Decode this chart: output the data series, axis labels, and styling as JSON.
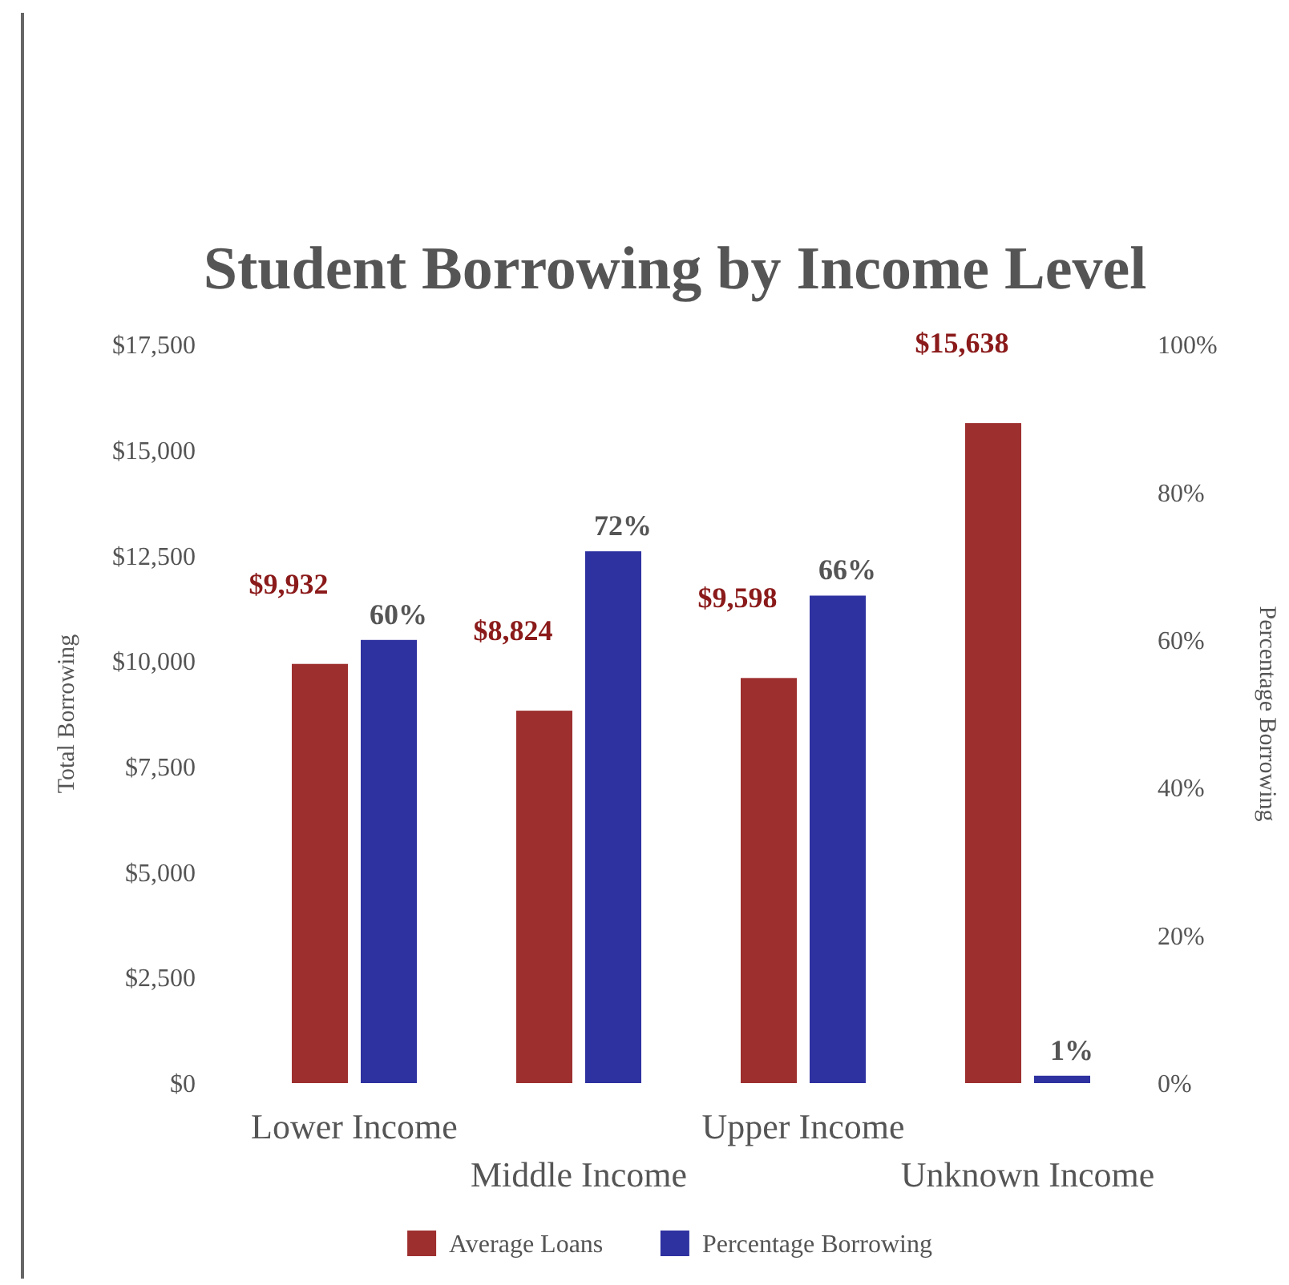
{
  "chart_data": {
    "type": "bar",
    "title": "Student Borrowing by Income Level",
    "ylabel": "Total Borrowing",
    "y2label": "Percentage Borrowing",
    "categories": [
      "Lower Income",
      "Middle Income",
      "Upper Income",
      "Unknown Income"
    ],
    "series": [
      {
        "name": "Average Loans",
        "color": "#9e2f2f",
        "values": [
          9932,
          8824,
          9598,
          15638
        ],
        "value_labels": [
          "$9,932",
          "$8,824",
          "$9,598",
          "$15,638"
        ]
      },
      {
        "name": "Percentage Borrowing",
        "color": "#2e31a0",
        "axis": "y2",
        "values": [
          60,
          72,
          66,
          1
        ],
        "value_labels": [
          "60%",
          "72%",
          "66%",
          "1%"
        ]
      }
    ],
    "ylim": [
      0,
      17500
    ],
    "yticks": [
      {
        "value": 0,
        "label": "$0"
      },
      {
        "value": 2500,
        "label": "$2,500"
      },
      {
        "value": 5000,
        "label": "$5,000"
      },
      {
        "value": 7500,
        "label": "$7,500"
      },
      {
        "value": 10000,
        "label": "$10,000"
      },
      {
        "value": 12500,
        "label": "$12,500"
      },
      {
        "value": 15000,
        "label": "$15,000"
      },
      {
        "value": 17500,
        "label": "$17,500"
      }
    ],
    "y2lim": [
      0,
      100
    ],
    "y2ticks": [
      {
        "value": 0,
        "label": "0%"
      },
      {
        "value": 20,
        "label": "20%"
      },
      {
        "value": 40,
        "label": "40%"
      },
      {
        "value": 60,
        "label": "60%"
      },
      {
        "value": 80,
        "label": "80%"
      },
      {
        "value": 100,
        "label": "100%"
      }
    ],
    "grid": false,
    "legend": "bottom"
  }
}
